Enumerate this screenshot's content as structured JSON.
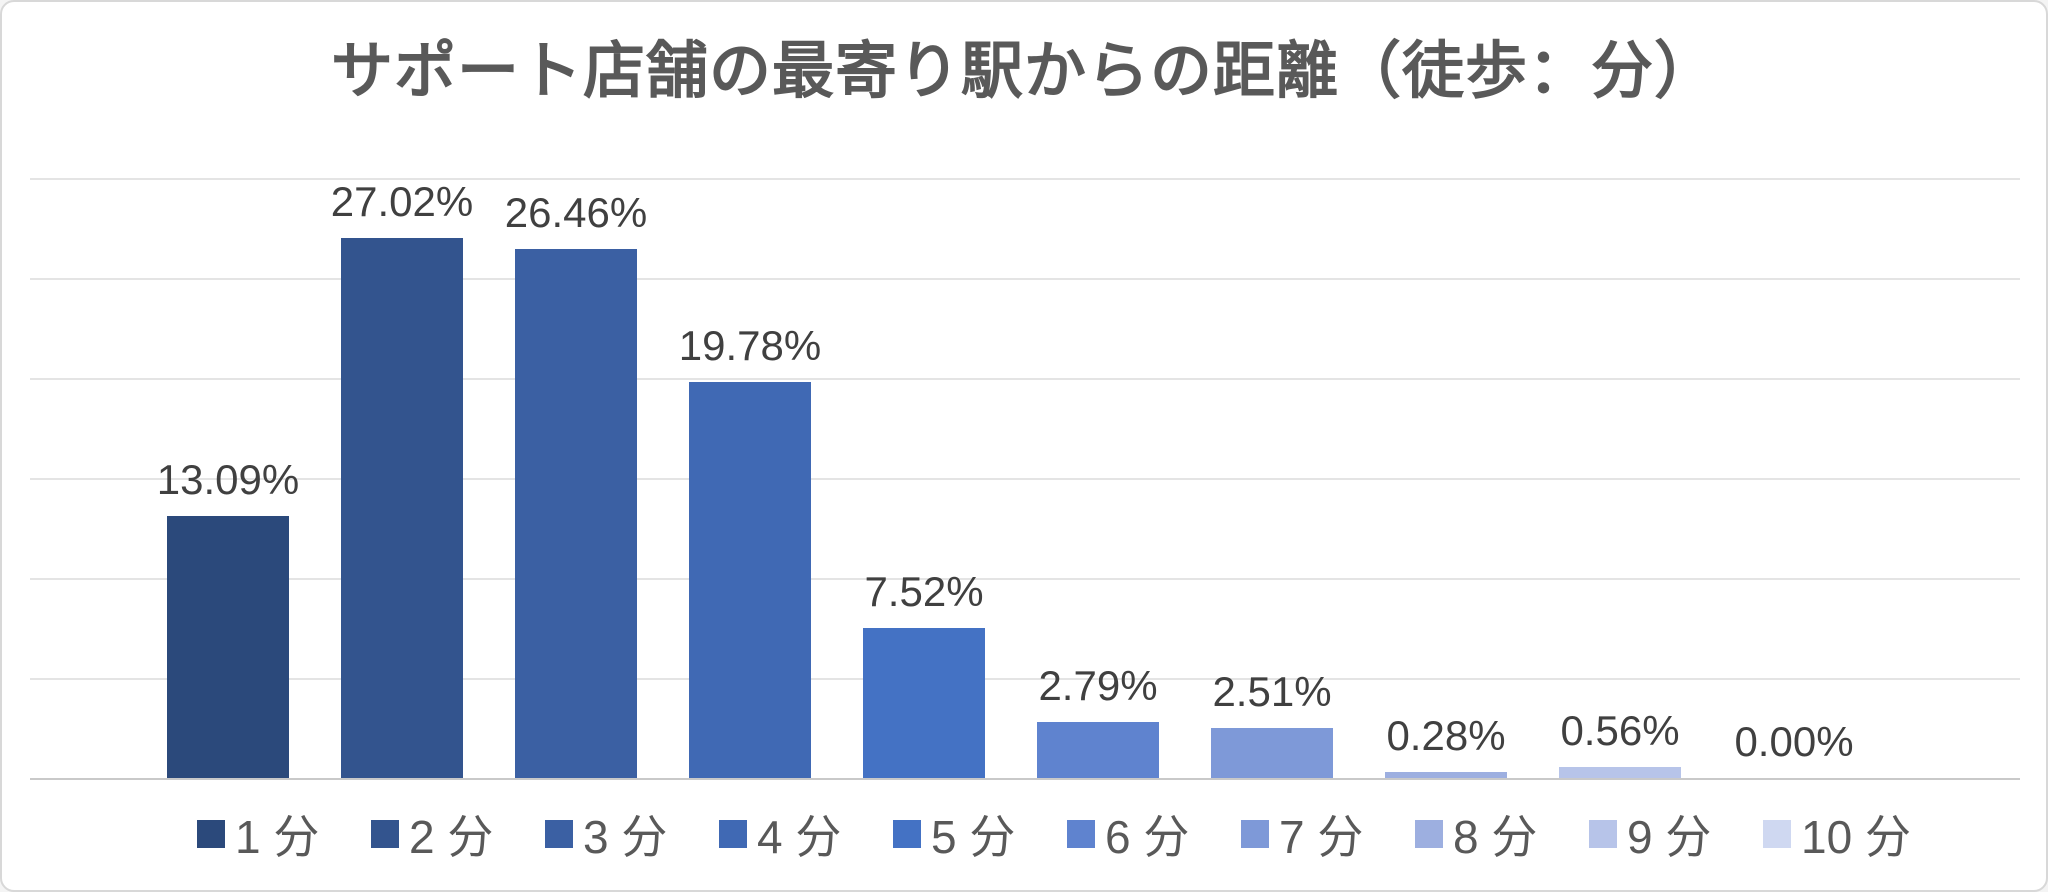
{
  "chart_data": {
    "type": "bar",
    "title": "サポート店舗の最寄り駅からの距離（徒歩：分）",
    "categories": [
      "1 分",
      "2 分",
      "3 分",
      "4 分",
      "5 分",
      "6 分",
      "7 分",
      "8 分",
      "9 分",
      "10 分"
    ],
    "values": [
      13.09,
      27.02,
      26.46,
      19.78,
      7.52,
      2.79,
      2.51,
      0.28,
      0.56,
      0.0
    ],
    "value_labels": [
      "13.09%",
      "27.02%",
      "26.46%",
      "19.78%",
      "7.52%",
      "2.79%",
      "2.51%",
      "0.28%",
      "0.56%",
      "0.00%"
    ],
    "bar_colors": [
      "#2B497B",
      "#33548E",
      "#3B60A3",
      "#4069B4",
      "#4472C4",
      "#5F83CF",
      "#7E99D8",
      "#9DAFE0",
      "#B7C4E9",
      "#CFD8F1"
    ],
    "ylim": [
      0,
      30
    ],
    "gridline_interval_pct": 5,
    "grid": true,
    "y_axis_tick_labels_shown": false,
    "legend_position": "bottom",
    "colors": {
      "title_text": "#595959",
      "value_label_text": "#404040",
      "legend_text": "#595959",
      "gridline": "#E4E4E4",
      "axis_line": "#C9C9C9",
      "background": "#FFFFFF",
      "frame_border": "#D8D8D8"
    }
  }
}
